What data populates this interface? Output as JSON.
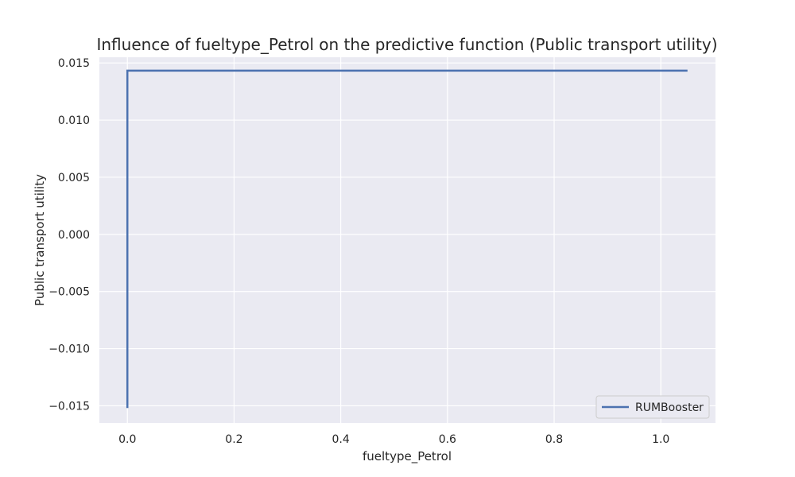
{
  "chart_data": {
    "type": "line",
    "title": "Influence of fueltype_Petrol on the predictive function (Public transport utility)",
    "xlabel": "fueltype_Petrol",
    "ylabel": "Public transport utility",
    "xlim": [
      -0.0525,
      1.1025
    ],
    "ylim": [
      -0.0165,
      0.0155
    ],
    "xticks": [
      0.0,
      0.2,
      0.4,
      0.6,
      0.8,
      1.0
    ],
    "xtick_labels": [
      "0.0",
      "0.2",
      "0.4",
      "0.6",
      "0.8",
      "1.0"
    ],
    "yticks": [
      0.015,
      0.01,
      0.005,
      0.0,
      -0.005,
      -0.01,
      -0.015
    ],
    "ytick_labels": [
      "0.015",
      "0.010",
      "0.005",
      "0.000",
      "−0.005",
      "−0.010",
      "−0.015"
    ],
    "grid": true,
    "legend_position": "bottom-right",
    "series": [
      {
        "name": "RUMBooster",
        "color": "#4c72b0",
        "x": [
          0.0,
          0.0,
          1.05
        ],
        "y": [
          -0.0152,
          0.01433,
          0.01433
        ]
      }
    ]
  }
}
